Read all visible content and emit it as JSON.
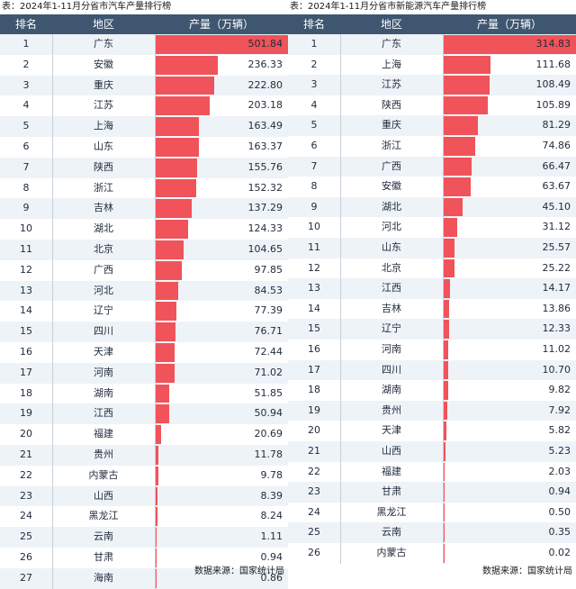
{
  "headers": {
    "rank": "排名",
    "region": "地区",
    "output": "产量（万辆）"
  },
  "source": "数据来源：国家统计局",
  "colors": {
    "header_bg": "#3e5670",
    "bar": "#f05359",
    "row_alt": "#eef3f8",
    "row_plain": "#ffffff"
  },
  "chart_data": [
    {
      "type": "table",
      "title": "表：2024年1-11月分省市汽车产量排行榜",
      "columns": [
        "排名",
        "地区",
        "产量（万辆）"
      ],
      "ranks": [
        "1",
        "2",
        "3",
        "4",
        "5",
        "6",
        "7",
        "8",
        "9",
        "10",
        "11",
        "12",
        "13",
        "14",
        "15",
        "16",
        "17",
        "18",
        "19",
        "20",
        "21",
        "22",
        "23",
        "24",
        "25",
        "26",
        "27"
      ],
      "categories": [
        "广东",
        "安徽",
        "重庆",
        "江苏",
        "上海",
        "山东",
        "陕西",
        "浙江",
        "吉林",
        "湖北",
        "北京",
        "广西",
        "河北",
        "辽宁",
        "四川",
        "天津",
        "河南",
        "湖南",
        "江西",
        "福建",
        "贵州",
        "内蒙古",
        "山西",
        "黑龙江",
        "云南",
        "甘肃",
        "海南"
      ],
      "value_labels": [
        "501.84",
        "236.33",
        "222.80",
        "203.18",
        "163.49",
        "163.37",
        "155.76",
        "152.32",
        "137.29",
        "124.33",
        "104.65",
        "97.85",
        "84.53",
        "77.39",
        "76.71",
        "72.44",
        "71.02",
        "51.85",
        "50.94",
        "20.69",
        "11.78",
        "9.78",
        "8.39",
        "8.24",
        "1.11",
        "0.94",
        "0.86"
      ],
      "values": [
        501.84,
        236.33,
        222.8,
        203.18,
        163.49,
        163.37,
        155.76,
        152.32,
        137.29,
        124.33,
        104.65,
        97.85,
        84.53,
        77.39,
        76.71,
        72.44,
        71.02,
        51.85,
        50.94,
        20.69,
        11.78,
        9.78,
        8.39,
        8.24,
        1.11,
        0.94,
        0.86
      ]
    },
    {
      "type": "table",
      "title": "表：2024年1-11月分省市新能源汽车产量排行榜",
      "columns": [
        "排名",
        "地区",
        "产量（万辆）"
      ],
      "ranks": [
        "1",
        "2",
        "3",
        "4",
        "5",
        "6",
        "7",
        "8",
        "9",
        "10",
        "11",
        "12",
        "13",
        "14",
        "15",
        "16",
        "17",
        "18",
        "19",
        "20",
        "21",
        "22",
        "23",
        "24",
        "25",
        "26"
      ],
      "categories": [
        "广东",
        "上海",
        "江苏",
        "陕西",
        "重庆",
        "浙江",
        "广西",
        "安徽",
        "湖北",
        "河北",
        "山东",
        "北京",
        "江西",
        "吉林",
        "辽宁",
        "河南",
        "四川",
        "湖南",
        "贵州",
        "天津",
        "山西",
        "福建",
        "甘肃",
        "黑龙江",
        "云南",
        "内蒙古"
      ],
      "value_labels": [
        "314.83",
        "111.68",
        "108.49",
        "105.89",
        "81.29",
        "74.86",
        "66.47",
        "63.67",
        "45.10",
        "31.12",
        "25.57",
        "25.22",
        "14.17",
        "13.86",
        "12.33",
        "11.02",
        "10.70",
        "9.82",
        "7.92",
        "5.82",
        "5.23",
        "2.03",
        "0.94",
        "0.50",
        "0.35",
        "0.02"
      ],
      "values": [
        314.83,
        111.68,
        108.49,
        105.89,
        81.29,
        74.86,
        66.47,
        63.67,
        45.1,
        31.12,
        25.57,
        25.22,
        14.17,
        13.86,
        12.33,
        11.02,
        10.7,
        9.82,
        7.92,
        5.82,
        5.23,
        2.03,
        0.94,
        0.5,
        0.35,
        0.02
      ]
    }
  ]
}
